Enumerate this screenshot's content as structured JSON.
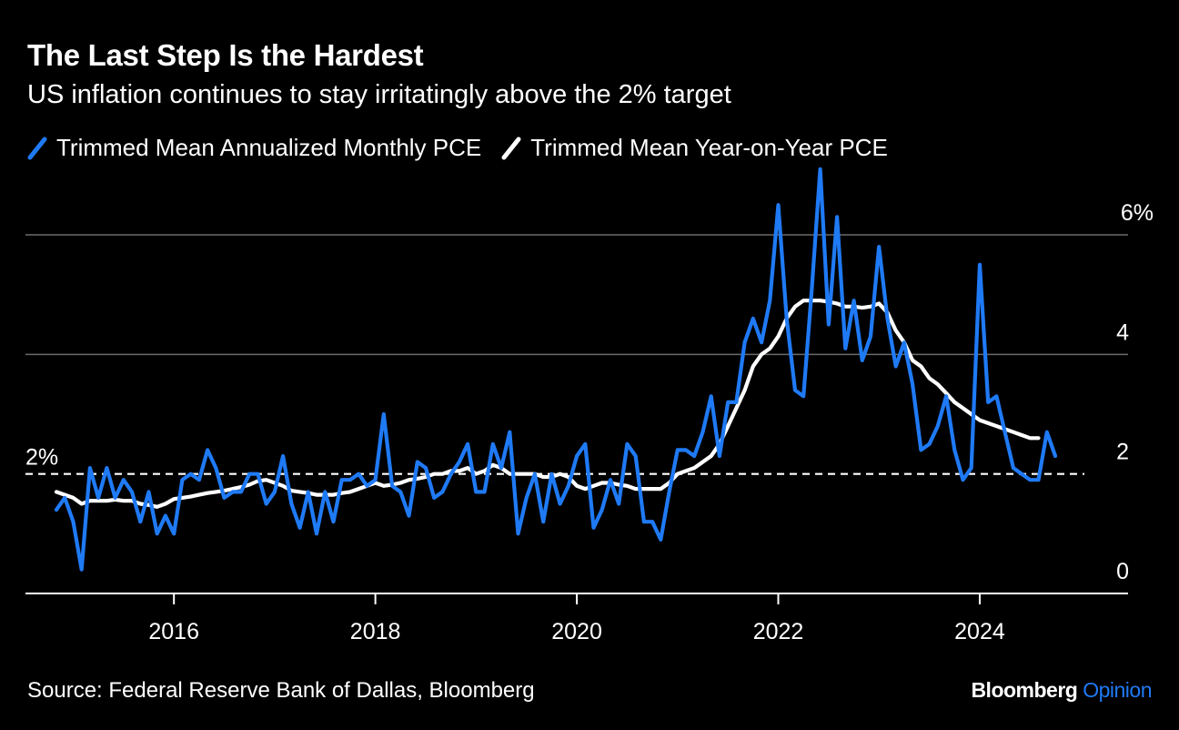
{
  "header": {
    "title": "The Last Step Is the Hardest",
    "subtitle": "US inflation continues to stay irritatingly above the 2% target"
  },
  "legend": [
    {
      "label": "Trimmed Mean Annualized Monthly PCE",
      "color": "#1f7af5"
    },
    {
      "label": "Trimmed Mean Year-on-Year PCE",
      "color": "#ffffff"
    }
  ],
  "footer": {
    "source": "Source: Federal Reserve Bank of Dallas, Bloomberg",
    "brand_main": "Bloomberg",
    "brand_sub": "Opinion"
  },
  "chart_data": {
    "type": "line",
    "x_start": "2014-11",
    "x_frequency": "monthly",
    "xlim": [
      "2014-08",
      "2025-05"
    ],
    "ylim": [
      0,
      7
    ],
    "y_ticks": [
      {
        "value": 0,
        "label": "0"
      },
      {
        "value": 2,
        "label": "2"
      },
      {
        "value": 4,
        "label": "4"
      },
      {
        "value": 6,
        "label": "6%"
      }
    ],
    "x_ticks": [
      {
        "date": "2016-01",
        "label": "2016"
      },
      {
        "date": "2018-01",
        "label": "2018"
      },
      {
        "date": "2020-01",
        "label": "2020"
      },
      {
        "date": "2022-01",
        "label": "2022"
      },
      {
        "date": "2024-01",
        "label": "2024"
      }
    ],
    "reference_line": {
      "value": 2,
      "label": "2%",
      "style": "dashed"
    },
    "grid": true,
    "y_axis_position": "right",
    "series": [
      {
        "name": "Trimmed Mean Annualized Monthly PCE",
        "color": "#1f7af5",
        "values": [
          1.4,
          1.6,
          1.2,
          0.4,
          2.1,
          1.6,
          2.1,
          1.6,
          1.9,
          1.7,
          1.2,
          1.7,
          1.0,
          1.3,
          1.0,
          1.9,
          2.0,
          1.9,
          2.4,
          2.1,
          1.6,
          1.7,
          1.7,
          2.0,
          2.0,
          1.5,
          1.7,
          2.3,
          1.5,
          1.1,
          1.7,
          1.0,
          1.7,
          1.2,
          1.9,
          1.9,
          2.0,
          1.8,
          1.9,
          3.0,
          1.8,
          1.7,
          1.3,
          2.2,
          2.1,
          1.6,
          1.7,
          2.0,
          2.2,
          2.5,
          1.7,
          1.7,
          2.5,
          2.1,
          2.7,
          1.0,
          1.6,
          2.0,
          1.2,
          2.0,
          1.5,
          1.8,
          2.3,
          2.5,
          1.1,
          1.4,
          1.9,
          1.5,
          2.5,
          2.3,
          1.2,
          1.2,
          0.9,
          1.7,
          2.4,
          2.4,
          2.3,
          2.7,
          3.3,
          2.3,
          3.2,
          3.2,
          4.2,
          4.6,
          4.2,
          4.9,
          6.5,
          4.6,
          3.4,
          3.3,
          5.1,
          7.1,
          4.5,
          6.3,
          4.1,
          4.9,
          3.9,
          4.3,
          5.8,
          4.6,
          3.8,
          4.2,
          3.5,
          2.4,
          2.5,
          2.8,
          3.3,
          2.4,
          1.9,
          2.1,
          5.5,
          3.2,
          3.3,
          2.7,
          2.1,
          2.0,
          1.9,
          1.9,
          2.7,
          2.3
        ]
      },
      {
        "name": "Trimmed Mean Year-on-Year PCE",
        "color": "#ffffff",
        "values": [
          1.7,
          1.65,
          1.6,
          1.5,
          1.55,
          1.55,
          1.55,
          1.57,
          1.55,
          1.55,
          1.5,
          1.48,
          1.45,
          1.5,
          1.58,
          1.6,
          1.62,
          1.65,
          1.68,
          1.7,
          1.72,
          1.75,
          1.78,
          1.82,
          1.88,
          1.9,
          1.85,
          1.8,
          1.72,
          1.7,
          1.68,
          1.65,
          1.65,
          1.65,
          1.68,
          1.7,
          1.75,
          1.8,
          1.85,
          1.8,
          1.82,
          1.85,
          1.9,
          1.92,
          1.95,
          2.0,
          2.0,
          2.05,
          2.05,
          2.1,
          2.0,
          2.05,
          2.15,
          2.1,
          2.0,
          2.0,
          2.0,
          2.0,
          1.95,
          1.95,
          2.0,
          1.95,
          1.8,
          1.75,
          1.8,
          1.85,
          1.85,
          1.82,
          1.8,
          1.75,
          1.75,
          1.75,
          1.75,
          1.85,
          2.0,
          2.05,
          2.1,
          2.2,
          2.3,
          2.5,
          2.8,
          3.1,
          3.4,
          3.8,
          4.0,
          4.1,
          4.3,
          4.6,
          4.8,
          4.9,
          4.9,
          4.9,
          4.88,
          4.85,
          4.8,
          4.8,
          4.78,
          4.8,
          4.85,
          4.7,
          4.4,
          4.2,
          3.9,
          3.8,
          3.6,
          3.5,
          3.35,
          3.2,
          3.1,
          3.0,
          2.9,
          2.85,
          2.8,
          2.75,
          2.7,
          2.65,
          2.6,
          2.6
        ]
      }
    ]
  }
}
